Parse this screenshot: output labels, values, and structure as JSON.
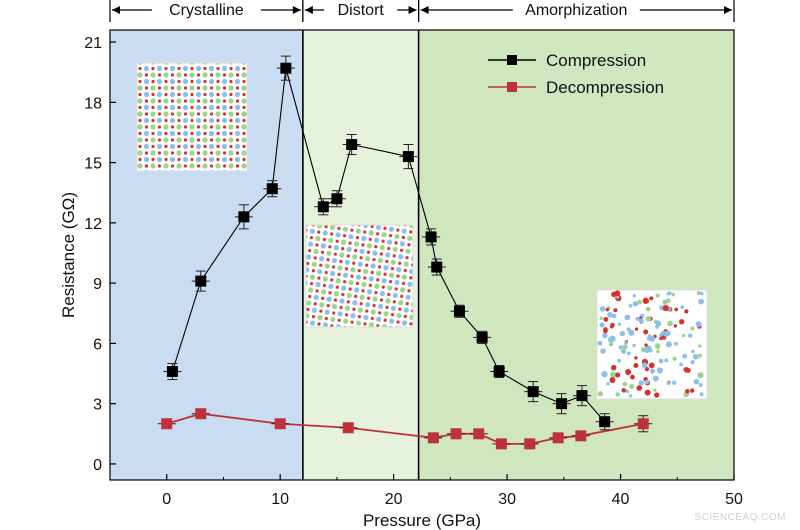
{
  "chart_data": {
    "type": "line",
    "xlabel": "Pressure (GPa)",
    "ylabel": "Resistance (GΩ)",
    "xlim": [
      -5,
      50
    ],
    "ylim": [
      -0.8,
      21.6
    ],
    "xticks": [
      0,
      10,
      20,
      30,
      40,
      50
    ],
    "yticks": [
      0,
      3,
      6,
      9,
      12,
      15,
      18,
      21
    ],
    "regions": [
      {
        "label": "Crystalline",
        "x_range": [
          -5,
          12
        ],
        "color": "#c9dcf1"
      },
      {
        "label": "Distort",
        "x_range": [
          12,
          22.2
        ],
        "color": "#e6f2dc"
      },
      {
        "label": "Amorphization",
        "x_range": [
          22.2,
          50
        ],
        "color": "#cfe6bf"
      }
    ],
    "legend_position": "top-right",
    "series": [
      {
        "name": "Compression",
        "color": "#000000",
        "x": [
          0.5,
          3.0,
          6.8,
          9.3,
          10.5,
          13.8,
          15.0,
          16.3,
          21.3,
          23.3,
          23.8,
          25.8,
          27.8,
          29.3,
          32.3,
          34.8,
          36.6,
          38.6
        ],
        "y": [
          4.6,
          9.1,
          12.3,
          13.7,
          19.7,
          12.8,
          13.2,
          15.9,
          15.3,
          11.3,
          9.8,
          7.6,
          6.3,
          4.6,
          3.6,
          3.0,
          3.4,
          2.1
        ],
        "yerr": [
          0.4,
          0.5,
          0.6,
          0.4,
          0.6,
          0.4,
          0.4,
          0.5,
          0.6,
          0.4,
          0.4,
          0.3,
          0.3,
          0.3,
          0.5,
          0.5,
          0.5,
          0.4
        ]
      },
      {
        "name": "Decompression",
        "color": "#c0323a",
        "x": [
          0.0,
          3.0,
          10.0,
          16.0,
          23.5,
          25.5,
          27.5,
          29.5,
          32.0,
          34.5,
          36.5,
          42.0
        ],
        "y": [
          2.0,
          2.5,
          2.0,
          1.8,
          1.3,
          1.5,
          1.5,
          1.0,
          1.0,
          1.3,
          1.4,
          2.0
        ],
        "yerr": [
          0.2,
          0.2,
          0.2,
          0.2,
          0.2,
          0.2,
          0.2,
          0.2,
          0.2,
          0.2,
          0.2,
          0.4
        ]
      }
    ]
  },
  "watermark": "SCIENCEAQ.COM"
}
